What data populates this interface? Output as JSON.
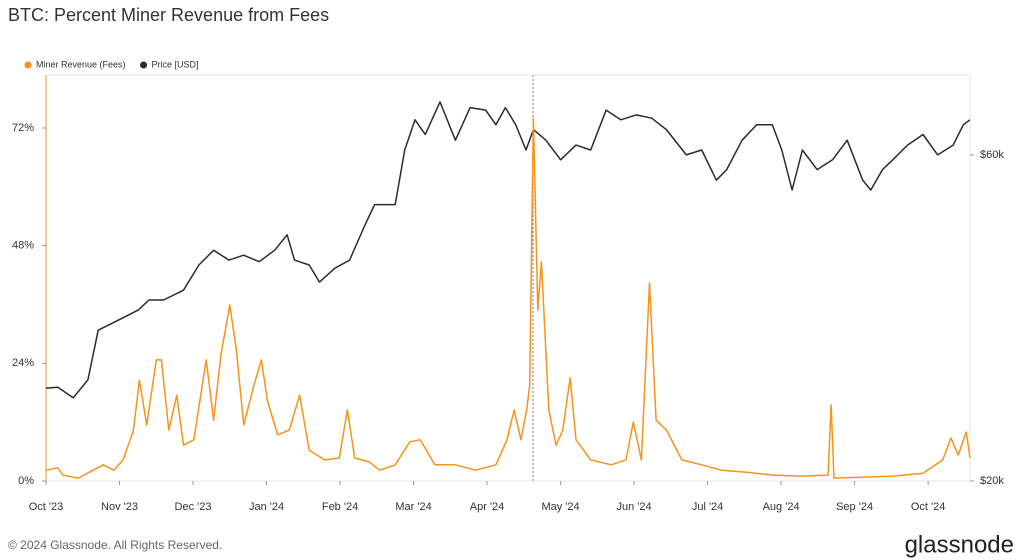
{
  "chart_data": {
    "type": "line",
    "title": "BTC: Percent Miner Revenue from Fees",
    "xlim": [
      0,
      12.57
    ],
    "xticks": [
      {
        "value": 0,
        "label": "Oct '23"
      },
      {
        "value": 1,
        "label": "Nov '23"
      },
      {
        "value": 2,
        "label": "Dec '23"
      },
      {
        "value": 3,
        "label": "Jan '24"
      },
      {
        "value": 4,
        "label": "Feb '24"
      },
      {
        "value": 5,
        "label": "Mar '24"
      },
      {
        "value": 6,
        "label": "Apr '24"
      },
      {
        "value": 7,
        "label": "May '24"
      },
      {
        "value": 8,
        "label": "Jun '24"
      },
      {
        "value": 9,
        "label": "Jul '24"
      },
      {
        "value": 10,
        "label": "Aug '24"
      },
      {
        "value": 11,
        "label": "Sep '24"
      },
      {
        "value": 12,
        "label": "Oct '24"
      }
    ],
    "ylim": [
      0,
      82.8
    ],
    "yticks": [
      {
        "value": 0,
        "label": "0%"
      },
      {
        "value": 24,
        "label": "24%"
      },
      {
        "value": 48,
        "label": "48%"
      },
      {
        "value": 72,
        "label": "72%"
      }
    ],
    "y2lim": [
      20000,
      69800
    ],
    "y2ticks": [
      {
        "value": 20000,
        "label": "$20k"
      },
      {
        "value": 60000,
        "label": "$60k"
      }
    ],
    "legend": "top-left",
    "series": [
      {
        "name": "Miner Revenue (Fees)",
        "color": "#f7931a",
        "x": [
          0,
          0.16,
          0.23,
          0.44,
          0.64,
          0.78,
          0.92,
          1.05,
          1.19,
          1.27,
          1.37,
          1.5,
          1.57,
          1.67,
          1.78,
          1.87,
          2.01,
          2.18,
          2.28,
          2.38,
          2.5,
          2.59,
          2.69,
          2.83,
          2.93,
          3.01,
          3.15,
          3.31,
          3.45,
          3.58,
          3.79,
          3.99,
          4.1,
          4.2,
          4.4,
          4.54,
          4.75,
          4.95,
          5.09,
          5.29,
          5.57,
          5.84,
          6.12,
          6.27,
          6.37,
          6.46,
          6.54,
          6.58,
          6.63,
          6.69,
          6.74,
          6.84,
          6.94,
          7.03,
          7.13,
          7.21,
          7.41,
          7.69,
          7.89,
          7.99,
          8.1,
          8.21,
          8.3,
          8.44,
          8.65,
          8.92,
          9.19,
          9.53,
          9.88,
          10.29,
          10.64,
          10.68,
          10.72,
          11.11,
          11.52,
          11.93,
          12.2,
          12.31,
          12.41,
          12.52,
          12.57
        ],
        "values": [
          2.2,
          2.7,
          1.2,
          0.6,
          2.2,
          3.3,
          2.2,
          4.3,
          10.4,
          20.6,
          11.4,
          24.7,
          24.7,
          10.4,
          17.5,
          7.3,
          8.4,
          24.7,
          12.4,
          25.7,
          35.9,
          26.7,
          11.4,
          19.6,
          24.7,
          16.5,
          9.4,
          10.4,
          17.5,
          6.3,
          4.3,
          4.7,
          14.5,
          4.7,
          3.9,
          2.2,
          3.3,
          8.0,
          8.4,
          3.3,
          3.3,
          2.2,
          3.3,
          8.4,
          14.5,
          8.4,
          14.5,
          19.6,
          74.0,
          34.9,
          44.7,
          14.5,
          7.3,
          10.4,
          21.0,
          8.4,
          4.3,
          3.3,
          4.3,
          12.0,
          4.3,
          40.4,
          12.4,
          10.4,
          4.3,
          3.3,
          2.2,
          1.8,
          1.2,
          1.0,
          1.2,
          15.5,
          0.6,
          0.8,
          1.0,
          1.6,
          4.3,
          8.8,
          5.3,
          10.0,
          4.7
        ]
      },
      {
        "name": "Price [USD]",
        "color": "#2b2b2b",
        "axis": "y2",
        "x": [
          0,
          0.16,
          0.37,
          0.57,
          0.71,
          1.0,
          1.26,
          1.4,
          1.6,
          1.87,
          2.08,
          2.28,
          2.49,
          2.69,
          2.9,
          3.11,
          3.28,
          3.38,
          3.58,
          3.72,
          3.93,
          4.13,
          4.34,
          4.47,
          4.75,
          4.88,
          5.02,
          5.16,
          5.36,
          5.57,
          5.77,
          5.98,
          6.12,
          6.25,
          6.39,
          6.53,
          6.63,
          6.8,
          7.0,
          7.21,
          7.41,
          7.62,
          7.82,
          8.03,
          8.24,
          8.44,
          8.71,
          8.92,
          9.12,
          9.26,
          9.47,
          9.67,
          9.88,
          10.01,
          10.15,
          10.29,
          10.49,
          10.7,
          10.9,
          11.11,
          11.22,
          11.38,
          11.52,
          11.72,
          11.93,
          12.13,
          12.34,
          12.48,
          12.57
        ],
        "values": [
          31400,
          31500,
          30200,
          32400,
          38500,
          39800,
          41000,
          42200,
          42200,
          43400,
          46500,
          48300,
          47100,
          47700,
          46900,
          48300,
          50200,
          47100,
          46500,
          44400,
          46100,
          47100,
          51400,
          53900,
          53900,
          60600,
          64300,
          62500,
          66500,
          61800,
          65800,
          65500,
          63700,
          65800,
          63700,
          60600,
          63100,
          61800,
          59400,
          61200,
          60600,
          65500,
          64300,
          64900,
          64500,
          63100,
          60000,
          60600,
          56900,
          58200,
          61800,
          63700,
          63700,
          60600,
          55700,
          60600,
          58200,
          59400,
          61800,
          56900,
          55700,
          58200,
          59400,
          61200,
          62500,
          60000,
          61200,
          63700,
          64300
        ]
      }
    ]
  },
  "footer": {
    "copyright": "© 2024 Glassnode. All Rights Reserved.",
    "brand": "glassnode"
  }
}
